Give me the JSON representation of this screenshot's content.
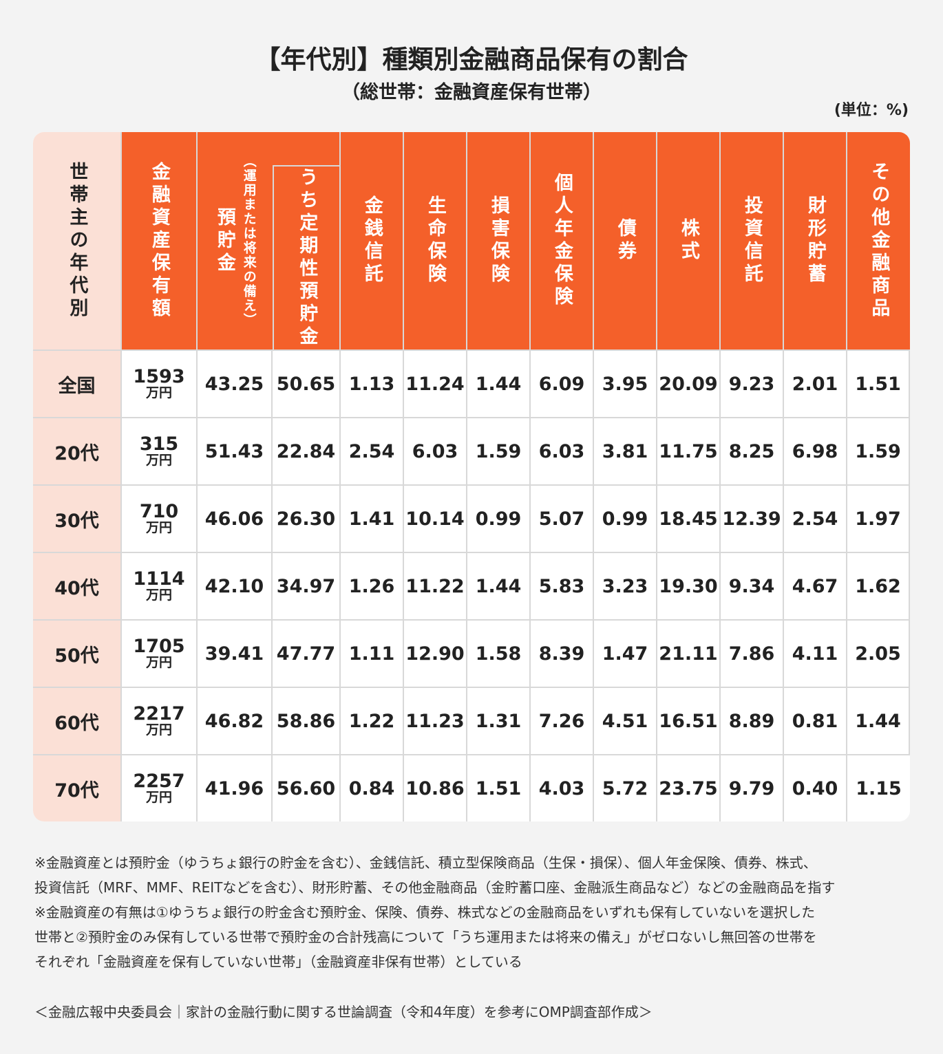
{
  "title": "【年代別】種類別金融商品保有の割合",
  "subtitle": "（総世帯：金融資産保有世帯）",
  "unit": "(単位：%)",
  "colors": {
    "header": "#f4602a",
    "row_header": "#fbe0d6",
    "grid": "#d8d8d8"
  },
  "chart_data": {
    "type": "table",
    "row_header_label": "世帯主の年代別",
    "columns": [
      "金融資産保有額",
      "預貯金",
      "（運用または将来の備え）",
      "うち定期性預貯金",
      "金銭信託",
      "生命保険",
      "損害保険",
      "個人年金保険",
      "債券",
      "株式",
      "投資信託",
      "財形貯蓄",
      "その他金融商品"
    ],
    "amount_unit": "万円",
    "rows": [
      {
        "label": "全国",
        "amount": "1593",
        "values": [
          "43.25",
          "50.65",
          "1.13",
          "11.24",
          "1.44",
          "6.09",
          "3.95",
          "20.09",
          "9.23",
          "2.01",
          "1.51"
        ]
      },
      {
        "label": "20代",
        "amount": "315",
        "values": [
          "51.43",
          "22.84",
          "2.54",
          "6.03",
          "1.59",
          "6.03",
          "3.81",
          "11.75",
          "8.25",
          "6.98",
          "1.59"
        ]
      },
      {
        "label": "30代",
        "amount": "710",
        "values": [
          "46.06",
          "26.30",
          "1.41",
          "10.14",
          "0.99",
          "5.07",
          "0.99",
          "18.45",
          "12.39",
          "2.54",
          "1.97"
        ]
      },
      {
        "label": "40代",
        "amount": "1114",
        "values": [
          "42.10",
          "34.97",
          "1.26",
          "11.22",
          "1.44",
          "5.83",
          "3.23",
          "19.30",
          "9.34",
          "4.67",
          "1.62"
        ]
      },
      {
        "label": "50代",
        "amount": "1705",
        "values": [
          "39.41",
          "47.77",
          "1.11",
          "12.90",
          "1.58",
          "8.39",
          "1.47",
          "21.11",
          "7.86",
          "4.11",
          "2.05"
        ]
      },
      {
        "label": "60代",
        "amount": "2217",
        "values": [
          "46.82",
          "58.86",
          "1.22",
          "11.23",
          "1.31",
          "7.26",
          "4.51",
          "16.51",
          "8.89",
          "0.81",
          "1.44"
        ]
      },
      {
        "label": "70代",
        "amount": "2257",
        "values": [
          "41.96",
          "56.60",
          "0.84",
          "10.86",
          "1.51",
          "4.03",
          "5.72",
          "23.75",
          "9.79",
          "0.40",
          "1.15"
        ]
      }
    ]
  },
  "notes": [
    "※金融資産とは預貯金（ゆうちょ銀行の貯金を含む）、金銭信託、積立型保険商品（生保・損保）、個人年金保険、債券、株式、",
    "投資信託（MRF、MMF、REITなどを含む）、財形貯蓄、その他金融商品（金貯蓄口座、金融派生商品など）などの金融商品を指す",
    "※金融資産の有無は①ゆうちょ銀行の貯金含む預貯金、保険、債券、株式などの金融商品をいずれも保有していないを選択した",
    "世帯と②預貯金のみ保有している世帯で預貯金の合計残高について「うち運用または将来の備え」がゼロないし無回答の世帯を",
    "それぞれ「金融資産を保有していない世帯」（金融資産非保有世帯）としている"
  ],
  "source": "＜金融広報中央委員会｜家計の金融行動に関する世論調査（令和4年度）を参考にOMP調査部作成＞"
}
